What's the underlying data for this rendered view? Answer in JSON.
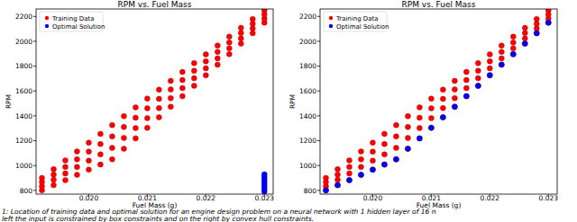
{
  "chart_data": [
    {
      "type": "scatter",
      "title": "RPM vs. Fuel Mass",
      "x_label": "Fuel Mass (g)",
      "y_label": "RPM",
      "xlim": [
        0.0191,
        0.02315
      ],
      "ylim": [
        770,
        2260
      ],
      "xticks": [
        {
          "value": 0.02,
          "label": "0.020"
        },
        {
          "value": 0.021,
          "label": "0.021"
        },
        {
          "value": 0.022,
          "label": "0.022"
        },
        {
          "value": 0.023,
          "label": "0.023"
        }
      ],
      "yticks": [
        800,
        1000,
        1200,
        1400,
        1600,
        1800,
        2000,
        2200
      ],
      "legend": "upper left",
      "marker": "o",
      "grid": false,
      "series": [
        {
          "name": "Training Data",
          "color": "#ff0000",
          "x": [
            0.0192,
            0.0192,
            0.0192,
            0.0192,
            0.0194,
            0.0194,
            0.0194,
            0.0194,
            0.0196,
            0.0196,
            0.0196,
            0.0196,
            0.0198,
            0.0198,
            0.0198,
            0.0198,
            0.02,
            0.02,
            0.02,
            0.02,
            0.0202,
            0.0202,
            0.0202,
            0.0202,
            0.0204,
            0.0204,
            0.0204,
            0.0204,
            0.0206,
            0.0206,
            0.0206,
            0.0206,
            0.0208,
            0.0208,
            0.0208,
            0.0208,
            0.021,
            0.021,
            0.021,
            0.021,
            0.0212,
            0.0212,
            0.0212,
            0.0212,
            0.0214,
            0.0214,
            0.0214,
            0.0214,
            0.0216,
            0.0216,
            0.0216,
            0.0216,
            0.0218,
            0.0218,
            0.0218,
            0.0218,
            0.022,
            0.022,
            0.022,
            0.022,
            0.0222,
            0.0222,
            0.0222,
            0.0222,
            0.0224,
            0.0224,
            0.0224,
            0.0224,
            0.0226,
            0.0226,
            0.0226,
            0.0226,
            0.0228,
            0.0228,
            0.0228,
            0.0228,
            0.023,
            0.023,
            0.023,
            0.023
          ],
          "values": [
            800,
            833,
            867,
            900,
            842,
            885,
            928,
            971,
            883,
            936,
            989,
            1042,
            925,
            988,
            1050,
            1113,
            967,
            1039,
            1112,
            1184,
            1008,
            1090,
            1173,
            1255,
            1050,
            1142,
            1234,
            1326,
            1135,
            1222,
            1310,
            1397,
            1219,
            1302,
            1385,
            1468,
            1304,
            1382,
            1461,
            1539,
            1388,
            1462,
            1537,
            1611,
            1473,
            1543,
            1612,
            1682,
            1558,
            1623,
            1688,
            1753,
            1642,
            1703,
            1763,
            1824,
            1727,
            1783,
            1839,
            1895,
            1812,
            1863,
            1915,
            1966,
            1896,
            1943,
            1990,
            2037,
            1981,
            2023,
            2066,
            2108,
            2065,
            2103,
            2141,
            2179,
            2150,
            2183,
            2217,
            2250
          ]
        },
        {
          "name": "Optimal Solution",
          "color": "#0000ff",
          "x": [
            0.023,
            0.023,
            0.023,
            0.023,
            0.023,
            0.023,
            0.023,
            0.023
          ],
          "values": [
            790,
            810,
            830,
            850,
            870,
            890,
            910,
            930
          ]
        }
      ]
    },
    {
      "type": "scatter",
      "title": "RPM vs. Fuel Mass",
      "x_label": "Fuel Mass (g)",
      "y_label": "RPM",
      "xlim": [
        0.0191,
        0.02315
      ],
      "ylim": [
        770,
        2260
      ],
      "xticks": [
        {
          "value": 0.02,
          "label": "0.020"
        },
        {
          "value": 0.021,
          "label": "0.021"
        },
        {
          "value": 0.022,
          "label": "0.022"
        },
        {
          "value": 0.023,
          "label": "0.023"
        }
      ],
      "yticks": [
        800,
        1000,
        1200,
        1400,
        1600,
        1800,
        2000,
        2200
      ],
      "legend": "upper left",
      "marker": "o",
      "grid": false,
      "series": [
        {
          "name": "Training Data",
          "color": "#ff0000",
          "x": [
            0.0192,
            0.0192,
            0.0192,
            0.0192,
            0.0194,
            0.0194,
            0.0194,
            0.0194,
            0.0196,
            0.0196,
            0.0196,
            0.0196,
            0.0198,
            0.0198,
            0.0198,
            0.0198,
            0.02,
            0.02,
            0.02,
            0.02,
            0.0202,
            0.0202,
            0.0202,
            0.0202,
            0.0204,
            0.0204,
            0.0204,
            0.0204,
            0.0206,
            0.0206,
            0.0206,
            0.0206,
            0.0208,
            0.0208,
            0.0208,
            0.0208,
            0.021,
            0.021,
            0.021,
            0.021,
            0.0212,
            0.0212,
            0.0212,
            0.0212,
            0.0214,
            0.0214,
            0.0214,
            0.0214,
            0.0216,
            0.0216,
            0.0216,
            0.0216,
            0.0218,
            0.0218,
            0.0218,
            0.0218,
            0.022,
            0.022,
            0.022,
            0.022,
            0.0222,
            0.0222,
            0.0222,
            0.0222,
            0.0224,
            0.0224,
            0.0224,
            0.0224,
            0.0226,
            0.0226,
            0.0226,
            0.0226,
            0.0228,
            0.0228,
            0.0228,
            0.0228,
            0.023,
            0.023,
            0.023,
            0.023
          ],
          "values": [
            800,
            833,
            867,
            900,
            842,
            885,
            928,
            971,
            883,
            936,
            989,
            1042,
            925,
            988,
            1050,
            1113,
            967,
            1039,
            1112,
            1184,
            1008,
            1090,
            1173,
            1255,
            1050,
            1142,
            1234,
            1326,
            1135,
            1222,
            1310,
            1397,
            1219,
            1302,
            1385,
            1468,
            1304,
            1382,
            1461,
            1539,
            1388,
            1462,
            1537,
            1611,
            1473,
            1543,
            1612,
            1682,
            1558,
            1623,
            1688,
            1753,
            1642,
            1703,
            1763,
            1824,
            1727,
            1783,
            1839,
            1895,
            1812,
            1863,
            1915,
            1966,
            1896,
            1943,
            1990,
            2037,
            1981,
            2023,
            2066,
            2108,
            2065,
            2103,
            2141,
            2179,
            2150,
            2183,
            2217,
            2250
          ]
        },
        {
          "name": "Optimal Solution",
          "color": "#0000ff",
          "x": [
            0.0192,
            0.0194,
            0.0196,
            0.0198,
            0.02,
            0.0202,
            0.0204,
            0.0206,
            0.0208,
            0.021,
            0.0212,
            0.0214,
            0.0216,
            0.0218,
            0.022,
            0.0222,
            0.0224,
            0.0226,
            0.0228,
            0.023
          ],
          "values": [
            800,
            842,
            883,
            925,
            967,
            1008,
            1050,
            1135,
            1219,
            1304,
            1388,
            1473,
            1558,
            1642,
            1727,
            1812,
            1896,
            1981,
            2065,
            2150
          ]
        }
      ]
    }
  ],
  "caption": [
    "1: Location of training data and optimal solution for an engine design problem on a neural network with 1 hidden layer of 16 n",
    "left the input is constrained by box constraints and on the right by convex hull constraints."
  ]
}
